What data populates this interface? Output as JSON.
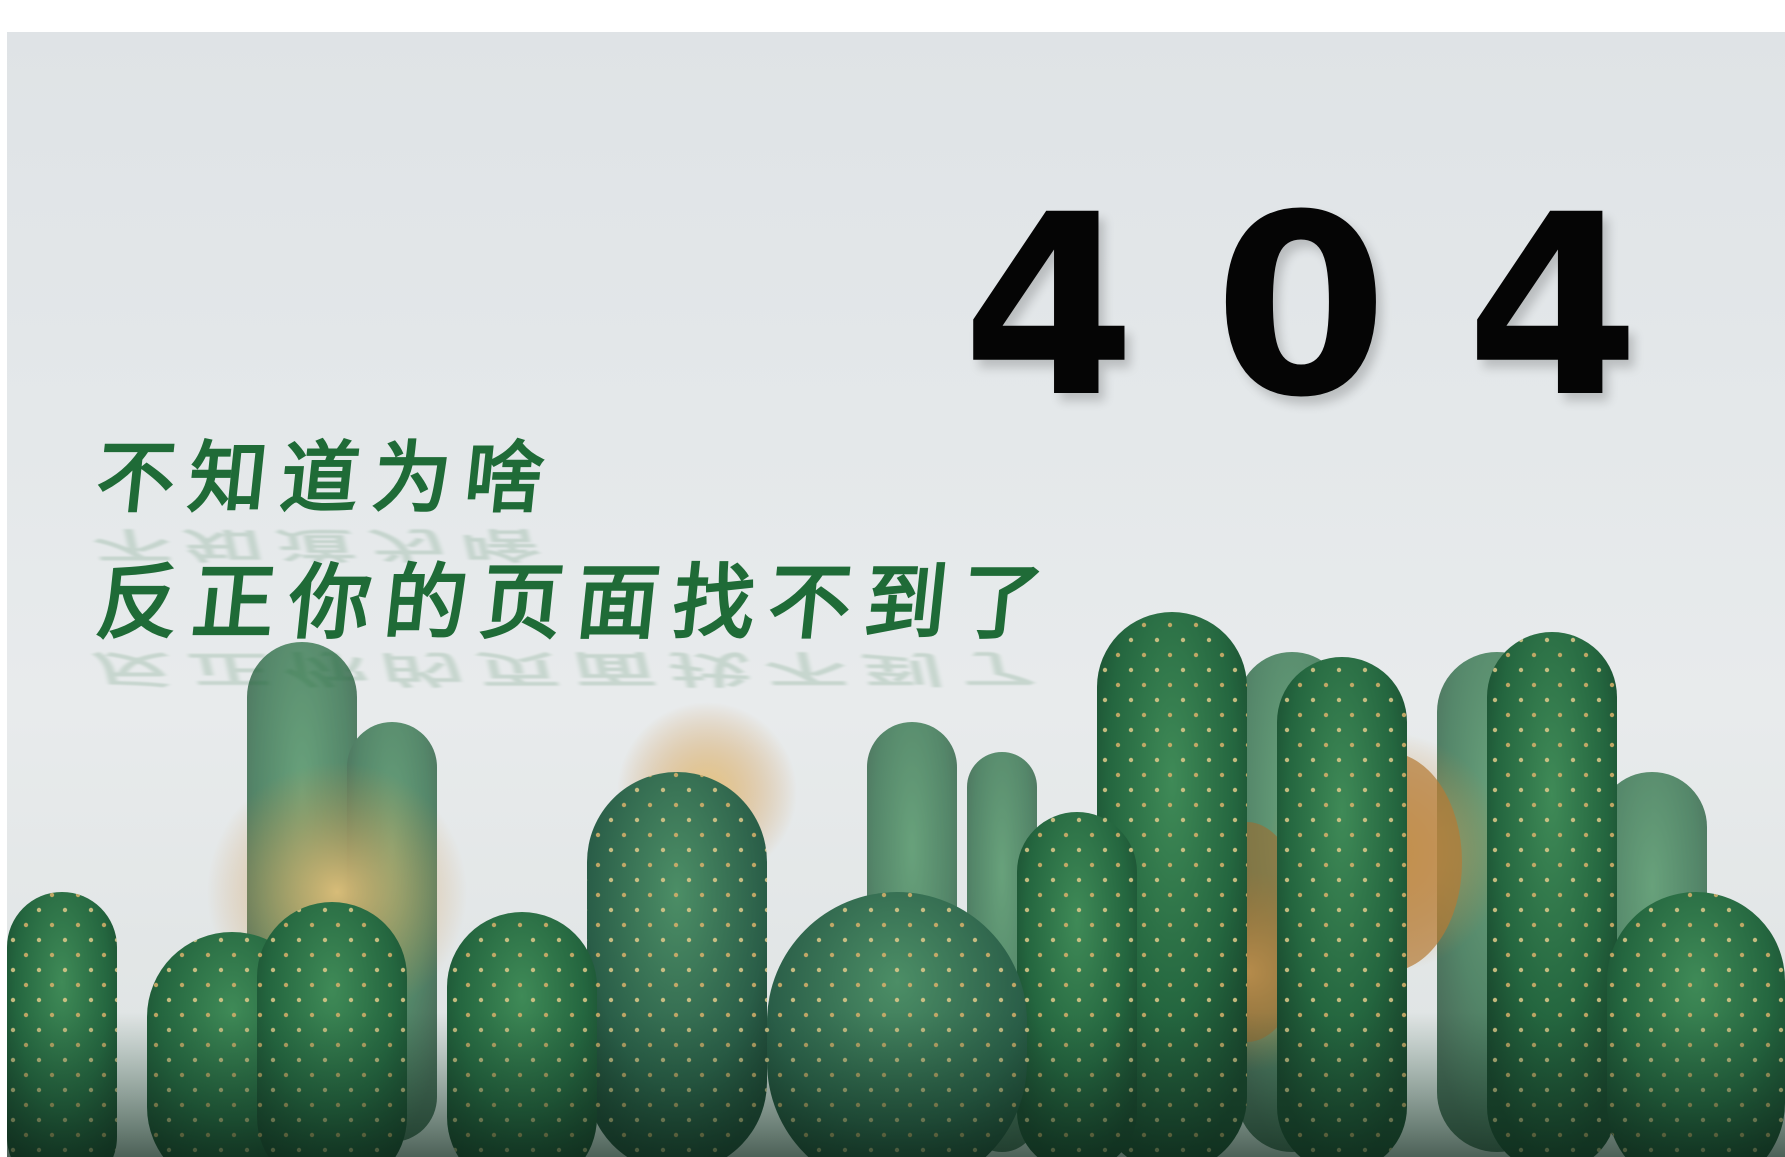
{
  "error": {
    "code": "404",
    "line1": "不知道为啥",
    "line2": "反正你的页面找不到了"
  },
  "colors": {
    "code": "#050505",
    "message": "#1f6b37",
    "background": "#e4e8ea",
    "cactus_dark": "#1d5a37",
    "cactus_mid": "#2f7a4a",
    "spine": "#d9c27a"
  },
  "background_image": "cactus-photo"
}
